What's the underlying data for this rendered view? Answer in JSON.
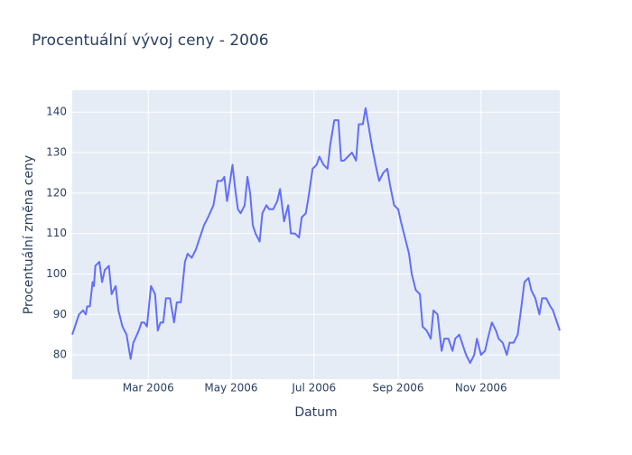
{
  "chart_data": {
    "type": "line",
    "title": "Procentuální vývoj ceny - 2006",
    "x_label": "Datum",
    "y_label": "Procentuální změna ceny",
    "x": [
      3,
      6,
      8,
      11,
      13,
      14,
      16,
      18,
      19,
      20,
      23,
      25,
      27,
      30,
      32,
      35,
      37,
      40,
      43,
      46,
      48,
      52,
      54,
      56,
      58,
      61,
      64,
      66,
      68,
      70,
      72,
      75,
      78,
      80,
      83,
      86,
      88,
      91,
      94,
      96,
      100,
      103,
      107,
      110,
      113,
      115,
      117,
      118,
      121,
      123,
      125,
      127,
      130,
      132,
      134,
      136,
      138,
      141,
      143,
      146,
      148,
      151,
      154,
      156,
      159,
      162,
      164,
      167,
      170,
      172,
      175,
      177,
      180,
      183,
      185,
      188,
      191,
      193,
      196,
      199,
      201,
      203,
      206,
      209,
      212,
      214,
      217,
      219,
      221,
      224,
      227,
      229,
      232,
      235,
      237,
      240,
      243,
      245,
      248,
      251,
      253,
      256,
      259,
      261,
      264,
      267,
      269,
      272,
      275,
      277,
      280,
      283,
      285,
      288,
      291,
      293,
      296,
      299,
      301,
      304,
      307,
      309,
      312,
      315,
      317,
      320,
      323,
      325,
      328,
      331,
      333,
      336,
      339,
      341,
      344,
      347,
      349,
      352,
      355,
      357,
      360,
      362
    ],
    "series": [
      {
        "name": "Procentuální změna ceny",
        "color": "#636efa",
        "values": [
          85,
          88,
          90,
          91,
          90,
          92,
          92,
          98,
          97,
          102,
          103,
          98,
          101,
          102,
          95,
          97,
          91,
          87,
          85,
          79,
          83,
          86,
          88,
          88,
          87,
          97,
          95,
          86,
          88,
          88,
          94,
          94,
          88,
          93,
          93,
          103,
          105,
          104,
          106,
          108,
          112,
          114,
          117,
          123,
          123,
          124,
          118,
          120,
          127,
          121,
          116,
          115,
          117,
          124,
          120,
          112,
          110,
          108,
          115,
          117,
          116,
          116,
          118,
          121,
          113,
          117,
          110,
          110,
          109,
          114,
          115,
          119,
          126,
          127,
          129,
          127,
          126,
          132,
          138,
          138,
          128,
          128,
          129,
          130,
          128,
          137,
          137,
          141,
          137,
          131,
          126,
          123,
          125,
          126,
          122,
          117,
          116,
          113,
          109,
          105,
          100,
          96,
          95,
          87,
          86,
          84,
          91,
          90,
          81,
          84,
          84,
          81,
          84,
          85,
          82,
          80,
          78,
          80,
          84,
          80,
          81,
          84,
          88,
          86,
          84,
          83,
          80,
          83,
          83,
          85,
          90,
          98,
          99,
          96,
          94,
          90,
          94,
          94,
          92,
          91,
          88,
          86
        ]
      }
    ],
    "xlim": [
      3,
      362
    ],
    "xticks": [
      {
        "value": 59,
        "label": "Mar 2006"
      },
      {
        "value": 120,
        "label": "May 2006"
      },
      {
        "value": 181,
        "label": "Jul 2006"
      },
      {
        "value": 243,
        "label": "Sep 2006"
      },
      {
        "value": 304,
        "label": "Nov 2006"
      }
    ],
    "ylim": [
      74,
      145.4
    ],
    "yticks": [
      80,
      90,
      100,
      110,
      120,
      130,
      140
    ],
    "grid": true
  }
}
